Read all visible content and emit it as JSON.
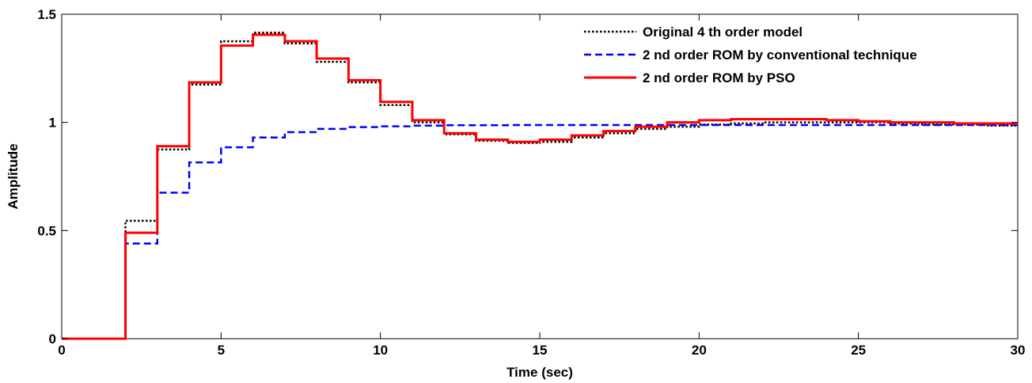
{
  "chart_data": {
    "type": "line",
    "xlabel": "Time (sec)",
    "ylabel": "Amplitude",
    "xlim": [
      0,
      30
    ],
    "ylim": [
      0,
      1.5
    ],
    "xticks": [
      0,
      5,
      10,
      15,
      20,
      25,
      30
    ],
    "xtick_labels": [
      "0",
      "5",
      "10",
      "15",
      "20",
      "25",
      "30"
    ],
    "yticks": [
      0,
      0.5,
      1,
      1.5
    ],
    "ytick_labels": [
      "0",
      "0.5",
      "1",
      "1.5"
    ],
    "grid": false,
    "legend_position": "top-right",
    "step": true,
    "series": [
      {
        "name": "Original 4 th order model",
        "color": "#000000",
        "style": "dotted",
        "x": [
          0,
          1,
          2,
          3,
          4,
          5,
          6,
          7,
          8,
          9,
          10,
          11,
          12,
          13,
          14,
          15,
          16,
          17,
          18,
          19,
          20,
          21,
          22,
          23,
          24,
          25,
          26,
          27,
          28,
          29,
          30
        ],
        "values": [
          0,
          0,
          0.545,
          0.875,
          1.175,
          1.375,
          1.415,
          1.365,
          1.28,
          1.185,
          1.08,
          1.0,
          0.945,
          0.915,
          0.905,
          0.91,
          0.93,
          0.95,
          0.97,
          0.98,
          0.99,
          0.995,
          1.0,
          1.0,
          1.0,
          1.0,
          0.995,
          0.99,
          0.99,
          0.985,
          0.985
        ]
      },
      {
        "name": "2 nd order ROM by conventional technique",
        "color": "#0000ff",
        "style": "dashed",
        "x": [
          0,
          1,
          2,
          3,
          4,
          5,
          6,
          7,
          8,
          9,
          10,
          11,
          12,
          13,
          14,
          15,
          16,
          17,
          18,
          19,
          20,
          21,
          22,
          23,
          24,
          25,
          26,
          27,
          28,
          29,
          30
        ],
        "values": [
          0,
          0,
          0.44,
          0.675,
          0.815,
          0.885,
          0.93,
          0.955,
          0.97,
          0.978,
          0.982,
          0.985,
          0.987,
          0.987,
          0.988,
          0.988,
          0.988,
          0.988,
          0.988,
          0.988,
          0.988,
          0.988,
          0.988,
          0.988,
          0.988,
          0.988,
          0.988,
          0.988,
          0.988,
          0.988,
          0.988
        ]
      },
      {
        "name": "2 nd order ROM by PSO",
        "color": "#ff0000",
        "style": "solid",
        "x": [
          0,
          1,
          2,
          3,
          4,
          5,
          6,
          7,
          8,
          9,
          10,
          11,
          12,
          13,
          14,
          15,
          16,
          17,
          18,
          19,
          20,
          21,
          22,
          23,
          24,
          25,
          26,
          27,
          28,
          29,
          30
        ],
        "values": [
          0,
          0,
          0.49,
          0.89,
          1.185,
          1.355,
          1.405,
          1.375,
          1.295,
          1.195,
          1.095,
          1.01,
          0.95,
          0.92,
          0.91,
          0.92,
          0.94,
          0.96,
          0.98,
          1.0,
          1.01,
          1.015,
          1.015,
          1.015,
          1.01,
          1.005,
          1.0,
          1.0,
          0.995,
          0.995,
          0.995
        ]
      }
    ]
  }
}
